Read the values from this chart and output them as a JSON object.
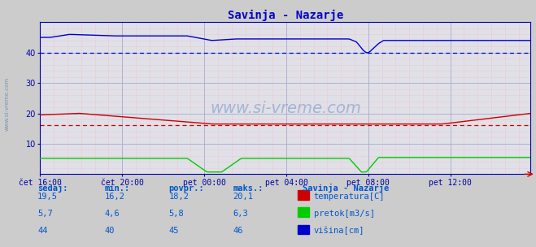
{
  "title": "Savinja - Nazarje",
  "title_color": "#0000cc",
  "bg_color": "#cccccc",
  "plot_bg_color": "#e0e0e8",
  "grid_color_major": "#aaaacc",
  "grid_color_minor": "#ffaaaa",
  "ylim": [
    0,
    50
  ],
  "yticks": [
    10,
    20,
    30,
    40
  ],
  "x_labels": [
    "čet 16:00",
    "čet 20:00",
    "pet 00:00",
    "pet 04:00",
    "pet 08:00",
    "pet 12:00"
  ],
  "x_ticks_pos": [
    0,
    48,
    96,
    144,
    192,
    240
  ],
  "total_points": 288,
  "watermark": "www.si-vreme.com",
  "legend_title": "Savinja - Nazarje",
  "legend_items": [
    "temperatura[C]",
    "pretok[m3/s]",
    "višina[cm]"
  ],
  "legend_colors": [
    "#cc0000",
    "#00cc00",
    "#0000cc"
  ],
  "table_headers": [
    "sedaj:",
    "min.:",
    "povpr.:",
    "maks.:"
  ],
  "table_values": [
    [
      "19,5",
      "16,2",
      "18,2",
      "20,1"
    ],
    [
      "5,7",
      "4,6",
      "5,8",
      "6,3"
    ],
    [
      "44",
      "40",
      "45",
      "46"
    ]
  ],
  "hline_red": 16.2,
  "hline_blue": 40.0,
  "temp_color": "#cc0000",
  "flow_color": "#00cc00",
  "height_color": "#0000cc",
  "axis_color": "#0000aa",
  "tick_color": "#0000aa",
  "table_color": "#0055cc"
}
